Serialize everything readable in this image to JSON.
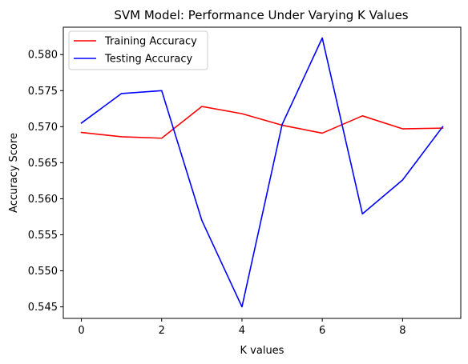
{
  "chart_data": {
    "type": "line",
    "title": "SVM Model: Performance Under Varying K Values",
    "xlabel": "K values",
    "ylabel": "Accuracy Score",
    "x": [
      0,
      1,
      2,
      3,
      4,
      5,
      6,
      7,
      8,
      9
    ],
    "xlim": [
      -0.45,
      9.45
    ],
    "ylim": [
      0.5434,
      0.5838
    ],
    "xticks": [
      0,
      2,
      4,
      6,
      8
    ],
    "yticks": [
      0.545,
      0.55,
      0.555,
      0.56,
      0.565,
      0.57,
      0.575,
      0.58
    ],
    "xtick_labels": [
      "0",
      "2",
      "4",
      "6",
      "8"
    ],
    "ytick_labels": [
      "0.545",
      "0.550",
      "0.555",
      "0.560",
      "0.565",
      "0.570",
      "0.575",
      "0.580"
    ],
    "grid": false,
    "legend_position": "upper-left",
    "series": [
      {
        "name": "Training Accuracy",
        "color": "#ff0000",
        "values": [
          0.5692,
          0.5686,
          0.5684,
          0.5728,
          0.5718,
          0.5702,
          0.5691,
          0.5715,
          0.5697,
          0.5698
        ]
      },
      {
        "name": "Testing Accuracy",
        "color": "#0000ff",
        "values": [
          0.5705,
          0.5746,
          0.575,
          0.557,
          0.545,
          0.5703,
          0.5823,
          0.5579,
          0.5626,
          0.57
        ]
      }
    ]
  }
}
